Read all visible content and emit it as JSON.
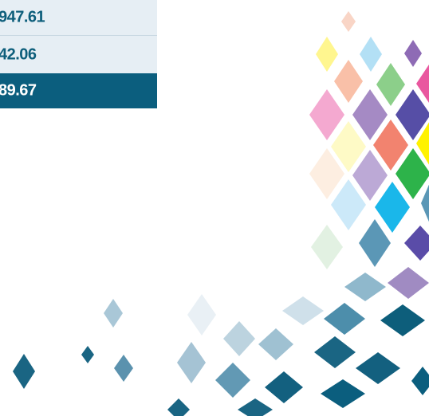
{
  "table": {
    "rows": [
      [
        "947.61"
      ],
      [
        "42.06"
      ],
      [
        "89.67"
      ]
    ]
  }
}
